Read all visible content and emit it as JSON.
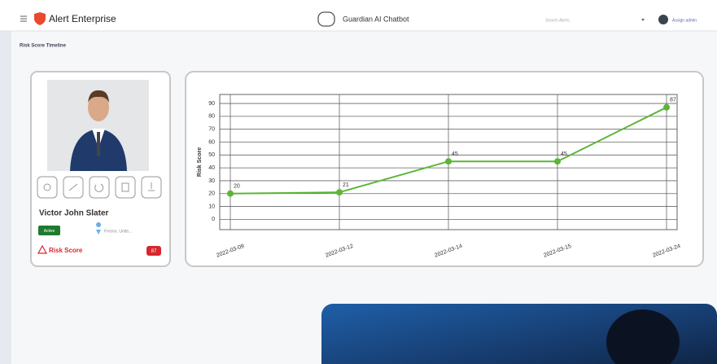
{
  "header": {
    "app_name": "Alert Enterprise",
    "chatbot_title": "Guardian AI Chatbot",
    "search_placeholder": "Search Alerts",
    "user_name": "Assign admin"
  },
  "page": {
    "title": "Risk Score Timeline"
  },
  "profile": {
    "name": "Victor John Slater",
    "status": "Active",
    "location": "Fresno, Unite...",
    "risk_label": "Risk Score",
    "risk_score": "87"
  },
  "chart_data": {
    "type": "line",
    "ylabel": "Risk Score",
    "categories": [
      "2022-03-09",
      "2022-03-12",
      "2022-03-14",
      "2022-03-15",
      "2022-03-24"
    ],
    "values": [
      20,
      21,
      45,
      45,
      87
    ],
    "color": "#5cb536",
    "ylim": [
      -8,
      97
    ],
    "yticks": [
      0,
      10,
      20,
      30,
      40,
      50,
      60,
      70,
      80,
      90
    ],
    "grid": true,
    "data_labels": true
  }
}
